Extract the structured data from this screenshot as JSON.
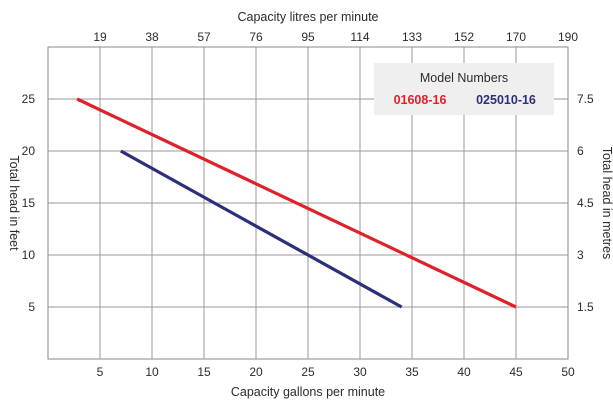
{
  "chart_data": {
    "type": "line",
    "x_bottom": {
      "label": "Capacity gallons per minute",
      "range": [
        0,
        50
      ],
      "ticks": [
        5,
        10,
        15,
        20,
        25,
        30,
        35,
        40,
        45,
        50
      ]
    },
    "x_top": {
      "label": "Capacity litres per minute",
      "ticks": [
        "19",
        "38",
        "57",
        "76",
        "95",
        "114",
        "133",
        "152",
        "170",
        "190"
      ]
    },
    "y_left": {
      "label": "Total head in feet",
      "range": [
        0,
        30
      ],
      "ticks": [
        5,
        10,
        15,
        20,
        25
      ]
    },
    "y_right": {
      "label": "Total head in metres",
      "ticks": [
        "1.5",
        "3",
        "4.5",
        "6",
        "7.5"
      ]
    },
    "grid": true,
    "legend": {
      "title": "Model Numbers",
      "placement": "top-right",
      "entries": [
        "01608-16",
        "025010-16"
      ]
    },
    "series": [
      {
        "name": "01608-16",
        "color": "#e0202a",
        "points": [
          [
            2.8,
            25
          ],
          [
            45,
            5
          ]
        ]
      },
      {
        "name": "025010-16",
        "color": "#2c2f7a",
        "points": [
          [
            7,
            20
          ],
          [
            34,
            5
          ]
        ]
      }
    ]
  }
}
